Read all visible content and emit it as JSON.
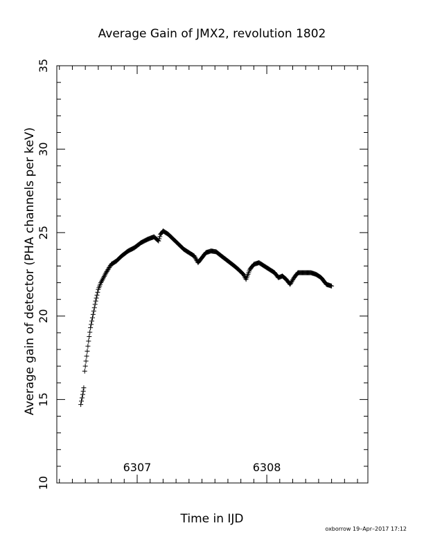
{
  "chart_data": {
    "type": "scatter",
    "title": "Average Gain of JMX2, revolution 1802",
    "xlabel": "Time in IJD",
    "ylabel": "Average gain of detector (PHA channels per keV)",
    "xlim": [
      6306.38,
      6308.78
    ],
    "ylim": [
      10,
      35
    ],
    "x_ticks": [
      "6307",
      "6308"
    ],
    "x_tick_values": [
      6307,
      6308
    ],
    "y_ticks": [
      "10",
      "15",
      "20",
      "25",
      "30",
      "35"
    ],
    "y_tick_values": [
      10,
      15,
      20,
      25,
      30,
      35
    ],
    "grid": false,
    "marker": "plus",
    "footer": "oxborrow 19–Apr–2017 17:12",
    "anchors": [
      [
        6306.565,
        14.7
      ],
      [
        6306.58,
        15.3
      ],
      [
        6306.588,
        15.7
      ],
      [
        6306.595,
        16.7
      ],
      [
        6306.61,
        17.6
      ],
      [
        6306.625,
        18.5
      ],
      [
        6306.64,
        19.3
      ],
      [
        6306.66,
        20.1
      ],
      [
        6306.68,
        20.9
      ],
      [
        6306.7,
        21.6
      ],
      [
        6306.72,
        22.0
      ],
      [
        6306.76,
        22.6
      ],
      [
        6306.8,
        23.1
      ],
      [
        6306.84,
        23.3
      ],
      [
        6306.88,
        23.6
      ],
      [
        6306.93,
        23.9
      ],
      [
        6306.98,
        24.1
      ],
      [
        6307.03,
        24.4
      ],
      [
        6307.08,
        24.6
      ],
      [
        6307.13,
        24.75
      ],
      [
        6307.165,
        24.5
      ],
      [
        6307.18,
        24.9
      ],
      [
        6307.2,
        25.1
      ],
      [
        6307.24,
        24.9
      ],
      [
        6307.28,
        24.6
      ],
      [
        6307.32,
        24.3
      ],
      [
        6307.36,
        24.0
      ],
      [
        6307.4,
        23.8
      ],
      [
        6307.44,
        23.6
      ],
      [
        6307.47,
        23.2
      ],
      [
        6307.5,
        23.5
      ],
      [
        6307.53,
        23.8
      ],
      [
        6307.57,
        23.9
      ],
      [
        6307.61,
        23.85
      ],
      [
        6307.65,
        23.6
      ],
      [
        6307.7,
        23.3
      ],
      [
        6307.75,
        23.0
      ],
      [
        6307.78,
        22.8
      ],
      [
        6307.82,
        22.5
      ],
      [
        6307.84,
        22.2
      ],
      [
        6307.87,
        22.8
      ],
      [
        6307.9,
        23.1
      ],
      [
        6307.94,
        23.2
      ],
      [
        6307.98,
        23.0
      ],
      [
        6308.02,
        22.8
      ],
      [
        6308.06,
        22.6
      ],
      [
        6308.09,
        22.3
      ],
      [
        6308.12,
        22.4
      ],
      [
        6308.15,
        22.2
      ],
      [
        6308.18,
        21.9
      ],
      [
        6308.21,
        22.3
      ],
      [
        6308.24,
        22.6
      ],
      [
        6308.29,
        22.6
      ],
      [
        6308.34,
        22.6
      ],
      [
        6308.38,
        22.5
      ],
      [
        6308.42,
        22.3
      ],
      [
        6308.46,
        21.9
      ],
      [
        6308.5,
        21.8
      ]
    ],
    "sample_step": 0.0048
  }
}
